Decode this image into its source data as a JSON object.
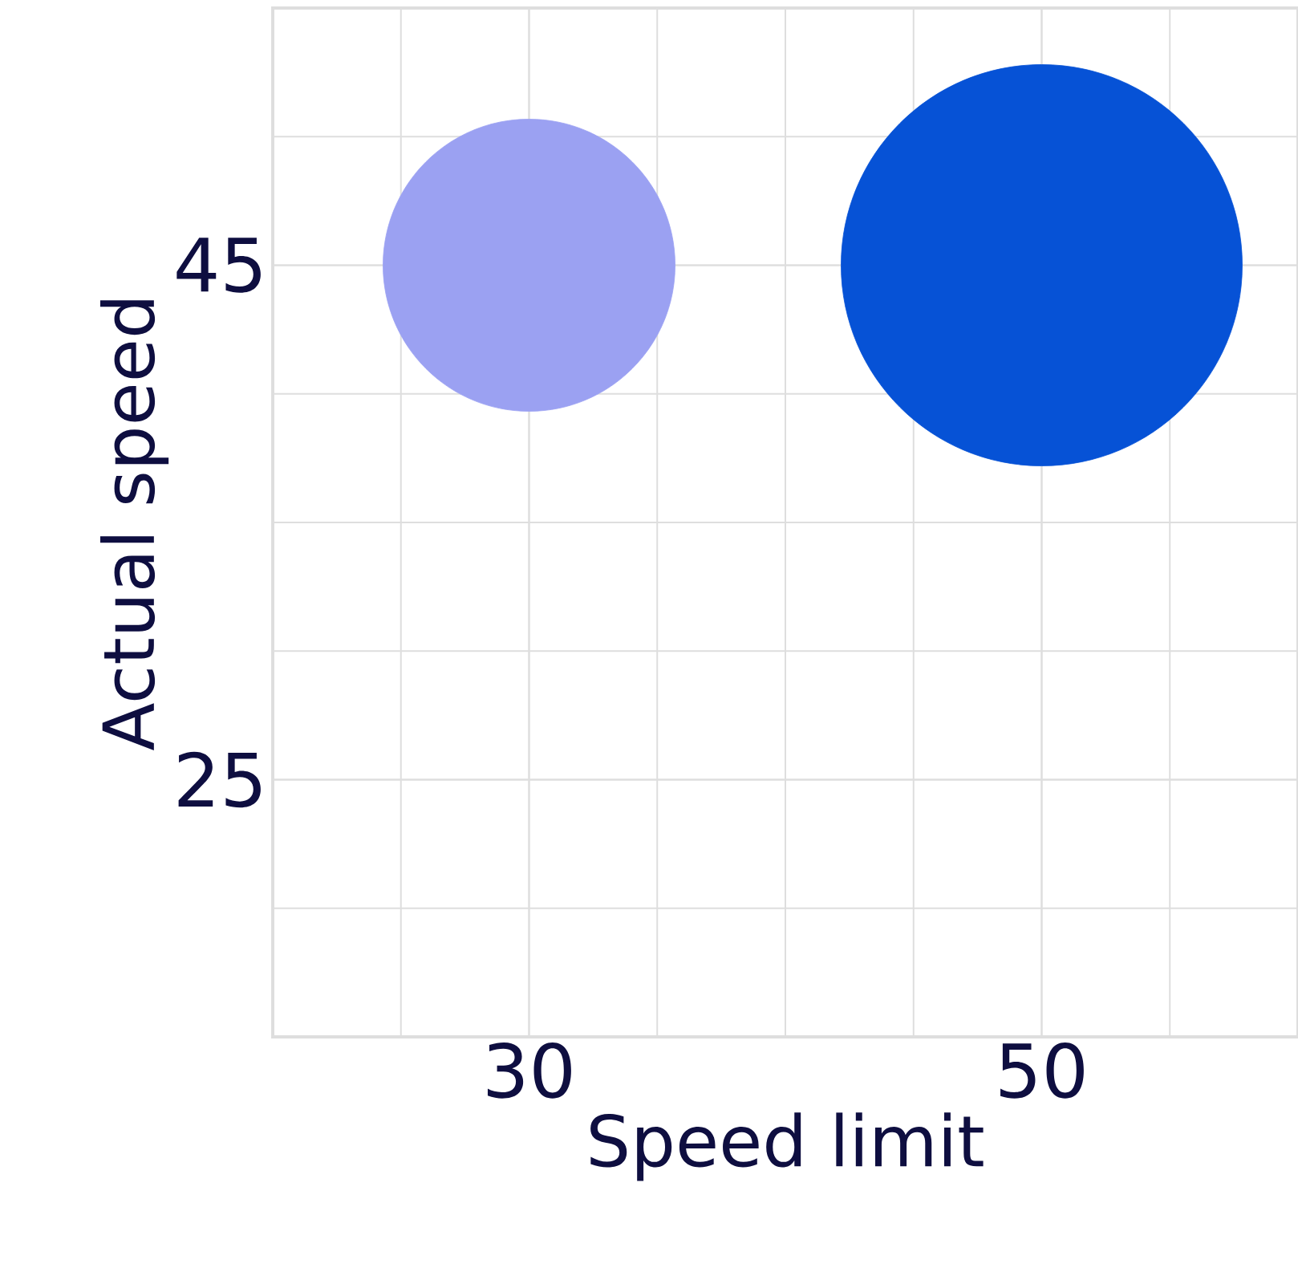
{
  "chart_data": {
    "type": "bubble",
    "xlabel": "Speed limit",
    "ylabel": "Actual speed",
    "x": [
      30,
      50
    ],
    "values": [
      45,
      45
    ],
    "sizes": [
      0.53,
      1
    ],
    "colors": [
      "#9ba1f2",
      "#0652d6"
    ],
    "xlim": [
      20,
      60
    ],
    "ylim": [
      15,
      55
    ],
    "xticks": [
      30,
      50
    ],
    "yticks": [
      25,
      45
    ],
    "grid": true
  }
}
